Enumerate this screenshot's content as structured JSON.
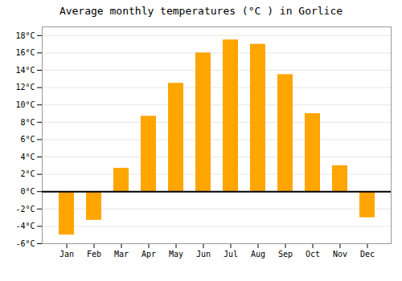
{
  "chart_data": {
    "type": "bar",
    "title": "Average monthly temperatures (°C ) in Gorlice",
    "categories": [
      "Jan",
      "Feb",
      "Mar",
      "Apr",
      "May",
      "Jun",
      "Jul",
      "Aug",
      "Sep",
      "Oct",
      "Nov",
      "Dec"
    ],
    "values": [
      -5.0,
      -3.3,
      2.7,
      8.7,
      12.5,
      16.0,
      17.5,
      17.0,
      13.5,
      9.0,
      3.0,
      -3.0
    ],
    "color": "#FFA500",
    "ylim": [
      -6,
      19
    ],
    "yticks": [
      {
        "value": -6,
        "label": "-6°C"
      },
      {
        "value": -4,
        "label": "-4°C"
      },
      {
        "value": -2,
        "label": "-2°C"
      },
      {
        "value": 0,
        "label": "0°C"
      },
      {
        "value": 2,
        "label": "2°C"
      },
      {
        "value": 4,
        "label": "4°C"
      },
      {
        "value": 6,
        "label": "6°C"
      },
      {
        "value": 8,
        "label": "8°C"
      },
      {
        "value": 10,
        "label": "10°C"
      },
      {
        "value": 12,
        "label": "12°C"
      },
      {
        "value": 14,
        "label": "14°C"
      },
      {
        "value": 16,
        "label": "16°C"
      },
      {
        "value": 18,
        "label": "18°C"
      }
    ],
    "grid": true
  }
}
